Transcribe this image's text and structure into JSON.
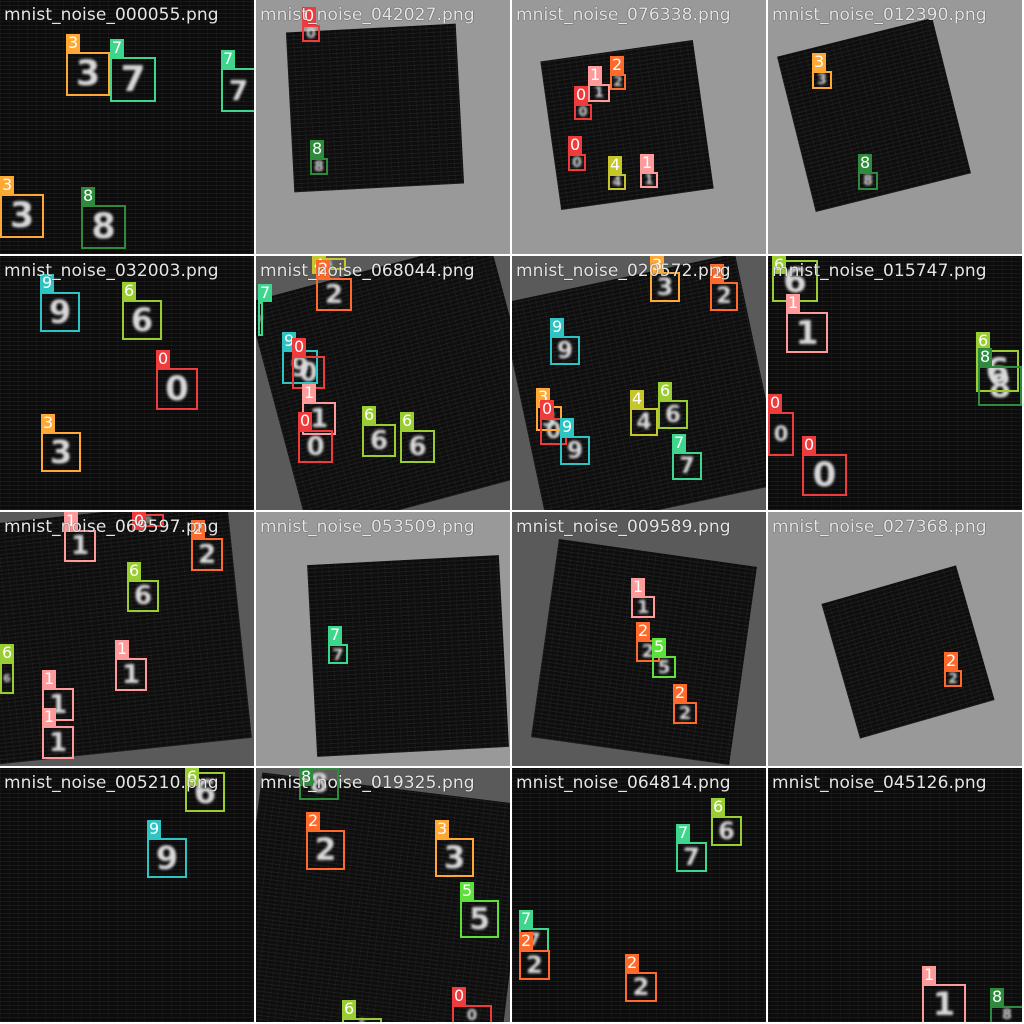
{
  "grid": {
    "cells": [
      {
        "filename": "mnist_noise_000055.png",
        "bg": "noise",
        "detections": [
          {
            "label": "3",
            "color": "#ffa833"
          },
          {
            "label": "7",
            "color": "#3dd68c"
          },
          {
            "label": "7",
            "color": "#3dd68c"
          },
          {
            "label": "3",
            "color": "#ffa833"
          },
          {
            "label": "8",
            "color": "#2e8b3d"
          }
        ]
      },
      {
        "filename": "mnist_noise_042027.png",
        "bg": "gray",
        "detections": [
          {
            "label": "0",
            "color": "#ef3b3b"
          },
          {
            "label": "8",
            "color": "#2e8b3d"
          }
        ]
      },
      {
        "filename": "mnist_noise_076338.png",
        "bg": "gray",
        "detections": [
          {
            "label": "1",
            "color": "#ff9a9a"
          },
          {
            "label": "2",
            "color": "#ff6a2a"
          },
          {
            "label": "0",
            "color": "#ef3b3b"
          },
          {
            "label": "0",
            "color": "#ef3b3b"
          },
          {
            "label": "4",
            "color": "#c6c62a"
          },
          {
            "label": "1",
            "color": "#ff9a9a"
          }
        ]
      },
      {
        "filename": "mnist_noise_012390.png",
        "bg": "gray",
        "detections": [
          {
            "label": "3",
            "color": "#ffa833"
          },
          {
            "label": "8",
            "color": "#2e8b3d"
          }
        ]
      },
      {
        "filename": "mnist_noise_032003.png",
        "bg": "noise",
        "detections": [
          {
            "label": "9",
            "color": "#2ec4c4"
          },
          {
            "label": "6",
            "color": "#9acd32"
          },
          {
            "label": "0",
            "color": "#ef3b3b"
          },
          {
            "label": "3",
            "color": "#ffa833"
          }
        ]
      },
      {
        "filename": "mnist_noise_068044.png",
        "bg": "dark",
        "detections": [
          {
            "label": "4",
            "color": "#c6c62a"
          },
          {
            "label": "2",
            "color": "#ff6a2a"
          },
          {
            "label": "7",
            "color": "#3dd68c"
          },
          {
            "label": "9",
            "color": "#2ec4c4"
          },
          {
            "label": "0",
            "color": "#ef3b3b"
          },
          {
            "label": "1",
            "color": "#ff9a9a"
          },
          {
            "label": "0",
            "color": "#ef3b3b"
          },
          {
            "label": "6",
            "color": "#9acd32"
          },
          {
            "label": "6",
            "color": "#9acd32"
          }
        ]
      },
      {
        "filename": "mnist_noise_020572.png",
        "bg": "dark",
        "detections": [
          {
            "label": "3",
            "color": "#ffa833"
          },
          {
            "label": "2",
            "color": "#ff6a2a"
          },
          {
            "label": "9",
            "color": "#2ec4c4"
          },
          {
            "label": "3",
            "color": "#ffa833"
          },
          {
            "label": "0",
            "color": "#ef3b3b"
          },
          {
            "label": "9",
            "color": "#2ec4c4"
          },
          {
            "label": "4",
            "color": "#c6c62a"
          },
          {
            "label": "6",
            "color": "#9acd32"
          },
          {
            "label": "7",
            "color": "#3dd68c"
          }
        ]
      },
      {
        "filename": "mnist_noise_015747.png",
        "bg": "noise",
        "detections": [
          {
            "label": "6",
            "color": "#9acd32"
          },
          {
            "label": "1",
            "color": "#ff9a9a"
          },
          {
            "label": "6",
            "color": "#9acd32"
          },
          {
            "label": "8",
            "color": "#2e8b3d"
          },
          {
            "label": "0",
            "color": "#ef3b3b"
          },
          {
            "label": "0",
            "color": "#ef3b3b"
          }
        ]
      },
      {
        "filename": "mnist_noise_069597.png",
        "bg": "dark",
        "detections": [
          {
            "label": "0",
            "color": "#ef3b3b"
          },
          {
            "label": "1",
            "color": "#ff9a9a"
          },
          {
            "label": "2",
            "color": "#ff6a2a"
          },
          {
            "label": "6",
            "color": "#9acd32"
          },
          {
            "label": "6",
            "color": "#9acd32"
          },
          {
            "label": "1",
            "color": "#ff9a9a"
          },
          {
            "label": "1",
            "color": "#ff9a9a"
          },
          {
            "label": "1",
            "color": "#ff9a9a"
          }
        ]
      },
      {
        "filename": "mnist_noise_053509.png",
        "bg": "gray",
        "detections": [
          {
            "label": "7",
            "color": "#3dd68c"
          }
        ]
      },
      {
        "filename": "mnist_noise_009589.png",
        "bg": "dark",
        "detections": [
          {
            "label": "1",
            "color": "#ff9a9a"
          },
          {
            "label": "2",
            "color": "#ff6a2a"
          },
          {
            "label": "5",
            "color": "#5ee03a"
          },
          {
            "label": "2",
            "color": "#ff6a2a"
          }
        ]
      },
      {
        "filename": "mnist_noise_027368.png",
        "bg": "gray",
        "detections": [
          {
            "label": "2",
            "color": "#ff6a2a"
          }
        ]
      },
      {
        "filename": "mnist_noise_005210.png",
        "bg": "noise",
        "detections": [
          {
            "label": "6",
            "color": "#9acd32"
          },
          {
            "label": "9",
            "color": "#2ec4c4"
          }
        ]
      },
      {
        "filename": "mnist_noise_019325.png",
        "bg": "dark",
        "detections": [
          {
            "label": "8",
            "color": "#2e8b3d"
          },
          {
            "label": "2",
            "color": "#ff6a2a"
          },
          {
            "label": "3",
            "color": "#ffa833"
          },
          {
            "label": "5",
            "color": "#5ee03a"
          },
          {
            "label": "6",
            "color": "#9acd32"
          },
          {
            "label": "0",
            "color": "#ef3b3b"
          }
        ]
      },
      {
        "filename": "mnist_noise_064814.png",
        "bg": "noise",
        "detections": [
          {
            "label": "6",
            "color": "#9acd32"
          },
          {
            "label": "7",
            "color": "#3dd68c"
          },
          {
            "label": "7",
            "color": "#3dd68c"
          },
          {
            "label": "2",
            "color": "#ff6a2a"
          },
          {
            "label": "2",
            "color": "#ff6a2a"
          }
        ]
      },
      {
        "filename": "mnist_noise_045126.png",
        "bg": "noise",
        "detections": [
          {
            "label": "1",
            "color": "#ff9a9a"
          },
          {
            "label": "8",
            "color": "#2e8b3d"
          }
        ]
      }
    ]
  }
}
